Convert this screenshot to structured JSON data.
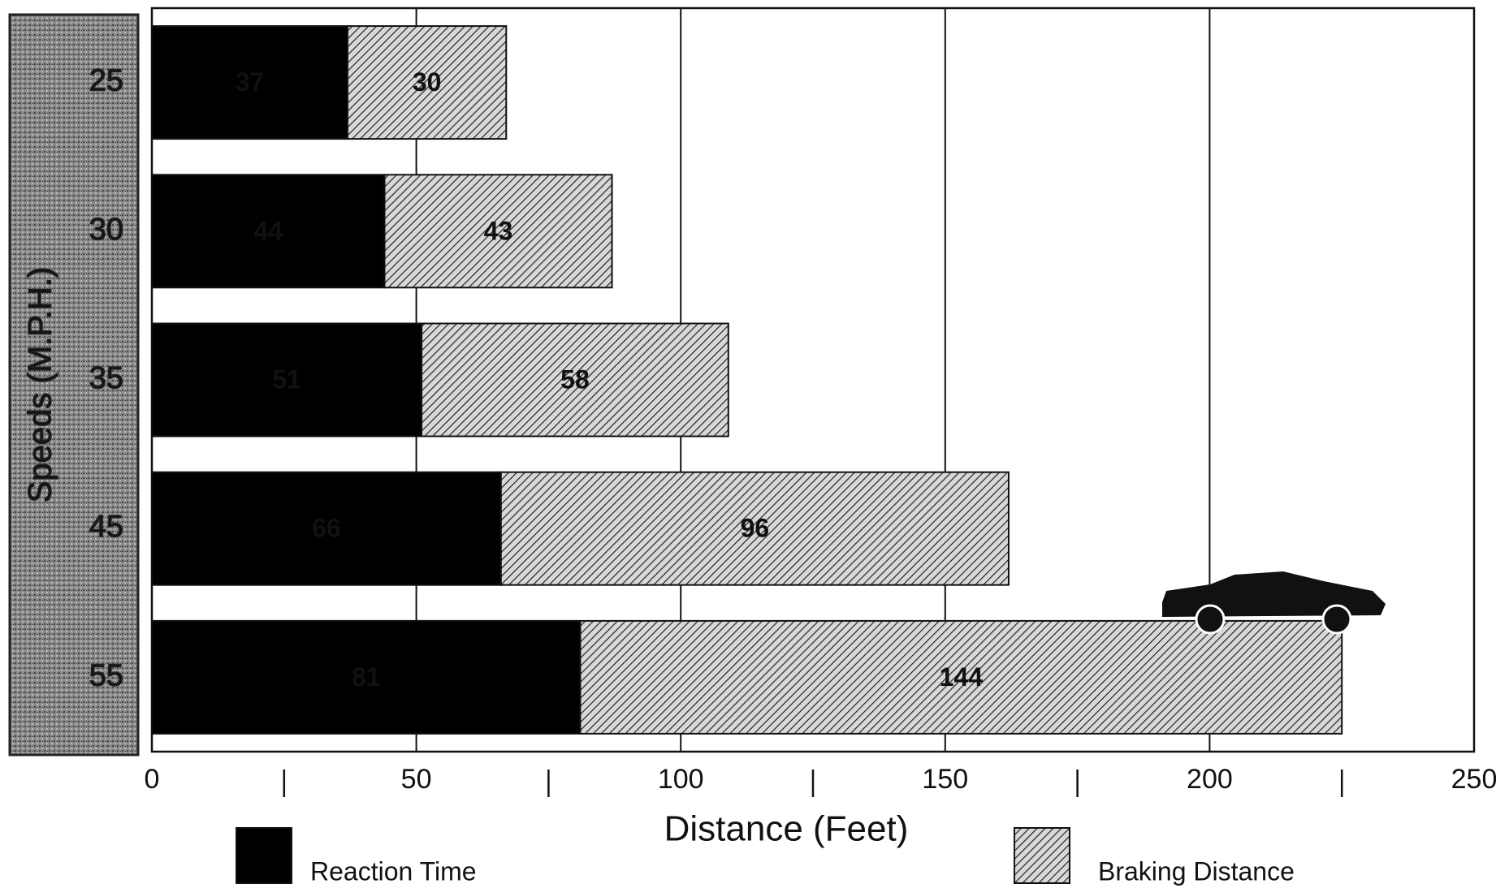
{
  "chart_data": {
    "type": "stacked-barh",
    "x_title": "Distance (Feet)",
    "y_title": "Speeds (M.P.H.)",
    "categories": [
      "25",
      "30",
      "35",
      "45",
      "55"
    ],
    "series": [
      {
        "name": "Reaction Time",
        "color": "#000000",
        "values": [
          37,
          44,
          51,
          66,
          81
        ]
      },
      {
        "name": "Braking Distance",
        "color": "hatch",
        "values": [
          30,
          43,
          58,
          96,
          144
        ]
      }
    ],
    "xlim": [
      0,
      250
    ],
    "xticks": [
      0,
      50,
      100,
      150,
      200,
      250
    ],
    "minor_xticks": [
      25,
      75,
      125,
      175,
      225
    ],
    "grid": true
  }
}
